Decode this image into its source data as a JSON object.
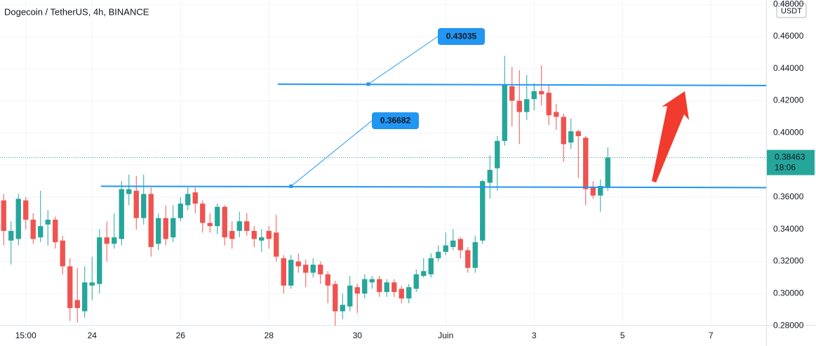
{
  "chart_data": {
    "type": "candlestick",
    "title": "Dogecoin / TetherUS, 4h, BINANCE",
    "unit": "USDT",
    "countdown": "18:06",
    "up_color": "#26a69a",
    "down_color": "#ef5350",
    "line_color": "#2196f3",
    "open": [
      0.358,
      0.333,
      0.334,
      0.358,
      0.346,
      0.335,
      0.343,
      0.346,
      0.333,
      0.317,
      0.296,
      0.289,
      0.305,
      0.306,
      0.335,
      0.331,
      0.334,
      0.362,
      0.364,
      0.347,
      0.362,
      0.331,
      0.347,
      0.335,
      0.347,
      0.355,
      0.363,
      0.356,
      0.344,
      0.342,
      0.354,
      0.339,
      0.339,
      0.345,
      0.339,
      0.333,
      0.339,
      0.338,
      0.322,
      0.305,
      0.32,
      0.318,
      0.313,
      0.318,
      0.312,
      0.306,
      0.289,
      0.292,
      0.304,
      0.3,
      0.307,
      0.309,
      0.301,
      0.307,
      0.303,
      0.297,
      0.303,
      0.311,
      0.312,
      0.322,
      0.326,
      0.329,
      0.334,
      0.327,
      0.316,
      0.333,
      0.369,
      0.378,
      0.395,
      0.429,
      0.42,
      0.413,
      0.421,
      0.426,
      0.425,
      0.413,
      0.41,
      0.394,
      0.401,
      0.397,
      0.366,
      0.361,
      0.366
    ],
    "high": [
      0.362,
      0.345,
      0.362,
      0.36,
      0.35,
      0.364,
      0.352,
      0.348,
      0.336,
      0.322,
      0.316,
      0.317,
      0.323,
      0.34,
      0.345,
      0.35,
      0.37,
      0.374,
      0.373,
      0.374,
      0.366,
      0.35,
      0.355,
      0.355,
      0.36,
      0.366,
      0.366,
      0.358,
      0.35,
      0.356,
      0.355,
      0.345,
      0.351,
      0.35,
      0.342,
      0.34,
      0.342,
      0.349,
      0.324,
      0.324,
      0.325,
      0.321,
      0.322,
      0.32,
      0.314,
      0.308,
      0.3,
      0.311,
      0.306,
      0.312,
      0.311,
      0.311,
      0.309,
      0.309,
      0.305,
      0.306,
      0.315,
      0.322,
      0.325,
      0.33,
      0.338,
      0.34,
      0.335,
      0.329,
      0.336,
      0.371,
      0.386,
      0.398,
      0.448,
      0.441,
      0.439,
      0.436,
      0.431,
      0.442,
      0.43,
      0.418,
      0.412,
      0.409,
      0.402,
      0.398,
      0.37,
      0.371,
      0.391
    ],
    "low": [
      0.33,
      0.318,
      0.33,
      0.34,
      0.331,
      0.332,
      0.33,
      0.328,
      0.312,
      0.283,
      0.282,
      0.285,
      0.296,
      0.3,
      0.32,
      0.328,
      0.33,
      0.355,
      0.34,
      0.343,
      0.323,
      0.327,
      0.33,
      0.332,
      0.345,
      0.352,
      0.35,
      0.338,
      0.338,
      0.337,
      0.33,
      0.328,
      0.335,
      0.336,
      0.329,
      0.326,
      0.328,
      0.32,
      0.3,
      0.303,
      0.313,
      0.304,
      0.31,
      0.306,
      0.294,
      0.28,
      0.284,
      0.289,
      0.288,
      0.297,
      0.303,
      0.298,
      0.298,
      0.298,
      0.294,
      0.294,
      0.301,
      0.31,
      0.31,
      0.32,
      0.324,
      0.327,
      0.322,
      0.313,
      0.313,
      0.331,
      0.359,
      0.364,
      0.392,
      0.404,
      0.393,
      0.408,
      0.414,
      0.417,
      0.405,
      0.402,
      0.382,
      0.39,
      0.372,
      0.355,
      0.359,
      0.351,
      0.364
    ],
    "close": [
      0.339,
      0.339,
      0.359,
      0.346,
      0.334,
      0.342,
      0.346,
      0.332,
      0.317,
      0.291,
      0.291,
      0.307,
      0.307,
      0.335,
      0.331,
      0.335,
      0.365,
      0.365,
      0.347,
      0.362,
      0.329,
      0.347,
      0.334,
      0.347,
      0.356,
      0.362,
      0.356,
      0.344,
      0.342,
      0.354,
      0.335,
      0.334,
      0.345,
      0.339,
      0.334,
      0.335,
      0.334,
      0.323,
      0.305,
      0.321,
      0.317,
      0.313,
      0.318,
      0.312,
      0.305,
      0.289,
      0.293,
      0.305,
      0.3,
      0.309,
      0.309,
      0.301,
      0.307,
      0.301,
      0.297,
      0.304,
      0.312,
      0.314,
      0.322,
      0.326,
      0.33,
      0.333,
      0.327,
      0.316,
      0.332,
      0.37,
      0.377,
      0.395,
      0.43,
      0.42,
      0.413,
      0.421,
      0.426,
      0.424,
      0.411,
      0.41,
      0.393,
      0.401,
      0.398,
      0.365,
      0.361,
      0.367,
      0.38463
    ],
    "xlim": [
      -0.5,
      103.5
    ],
    "xticks": [
      {
        "value": 3,
        "label": "15:00"
      },
      {
        "value": 12,
        "label": "24"
      },
      {
        "value": 24,
        "label": "26"
      },
      {
        "value": 36,
        "label": "28"
      },
      {
        "value": 48,
        "label": "30"
      },
      {
        "value": 60,
        "label": "Juin"
      },
      {
        "value": 72,
        "label": "3"
      },
      {
        "value": 84,
        "label": "5"
      },
      {
        "value": 96,
        "label": "7"
      }
    ],
    "ylim": [
      0.2805,
      0.4827
    ],
    "yticks": [
      {
        "value": 0.28,
        "label": "0.28000"
      },
      {
        "value": 0.3,
        "label": "0.30000"
      },
      {
        "value": 0.32,
        "label": "0.32000"
      },
      {
        "value": 0.34,
        "label": "0.34000"
      },
      {
        "value": 0.36,
        "label": "0.36000"
      },
      {
        "value": 0.38,
        "label": "0.38000"
      },
      {
        "value": 0.4,
        "label": "0.40000"
      },
      {
        "value": 0.42,
        "label": "0.42000"
      },
      {
        "value": 0.44,
        "label": "0.44000"
      },
      {
        "value": 0.46,
        "label": "0.46000"
      },
      {
        "value": 0.48,
        "label": "0.48000"
      }
    ],
    "annotations": [
      {
        "label": "0.43035",
        "value": 0.43035
      },
      {
        "label": "0.36682",
        "value": 0.36682
      }
    ]
  }
}
